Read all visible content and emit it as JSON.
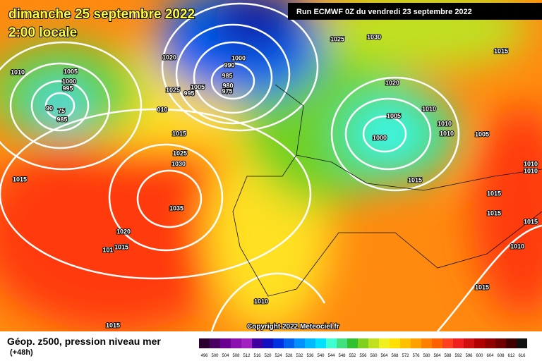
{
  "header": {
    "date": "dimanche 25 septembre 2022",
    "time": "2:00 locale",
    "run": "Run ECMWF 0Z du vendredi 23 septembre 2022"
  },
  "isobar_labels": [
    "1010",
    "1005",
    "1000",
    "995",
    "90",
    "75",
    "985",
    "1020",
    "1025",
    "1005",
    "995",
    "1000",
    "990",
    "985",
    "980",
    "975",
    "1025",
    "1030",
    "1015",
    "1020",
    "010",
    "1015",
    "1025",
    "1030",
    "1005",
    "1010",
    "1010",
    "1010",
    "1000",
    "1005",
    "1015",
    "1035",
    "1015",
    "1015",
    "1015",
    "1010",
    "1010",
    "1015",
    "1020",
    "1015",
    "101",
    "1010",
    "1015",
    "1010",
    "1015"
  ],
  "copyright": "Copyright 2022 Meteociel.fr",
  "legend": {
    "title": "Géop. z500, pression niveau mer",
    "lead": "(+48h)",
    "scale": [
      496,
      500,
      504,
      508,
      512,
      516,
      520,
      524,
      528,
      532,
      536,
      540,
      544,
      548,
      552,
      556,
      560,
      564,
      568,
      572,
      576,
      580,
      584,
      588,
      592,
      596,
      600,
      604,
      608,
      612,
      616
    ],
    "colors": [
      "#2a0030",
      "#4a0060",
      "#6a0090",
      "#8a10b0",
      "#a020c0",
      "#4000a0",
      "#1010c0",
      "#0030e0",
      "#0060f0",
      "#0090ff",
      "#00b8ff",
      "#00e0ff",
      "#40ffd0",
      "#40e080",
      "#30c030",
      "#80d020",
      "#c0e020",
      "#f0f020",
      "#ffe000",
      "#ffc000",
      "#ffa000",
      "#ff8000",
      "#ff6000",
      "#ff4020",
      "#f02020",
      "#d01010",
      "#b00000",
      "#900000",
      "#700000",
      "#400000",
      "#101010"
    ]
  }
}
